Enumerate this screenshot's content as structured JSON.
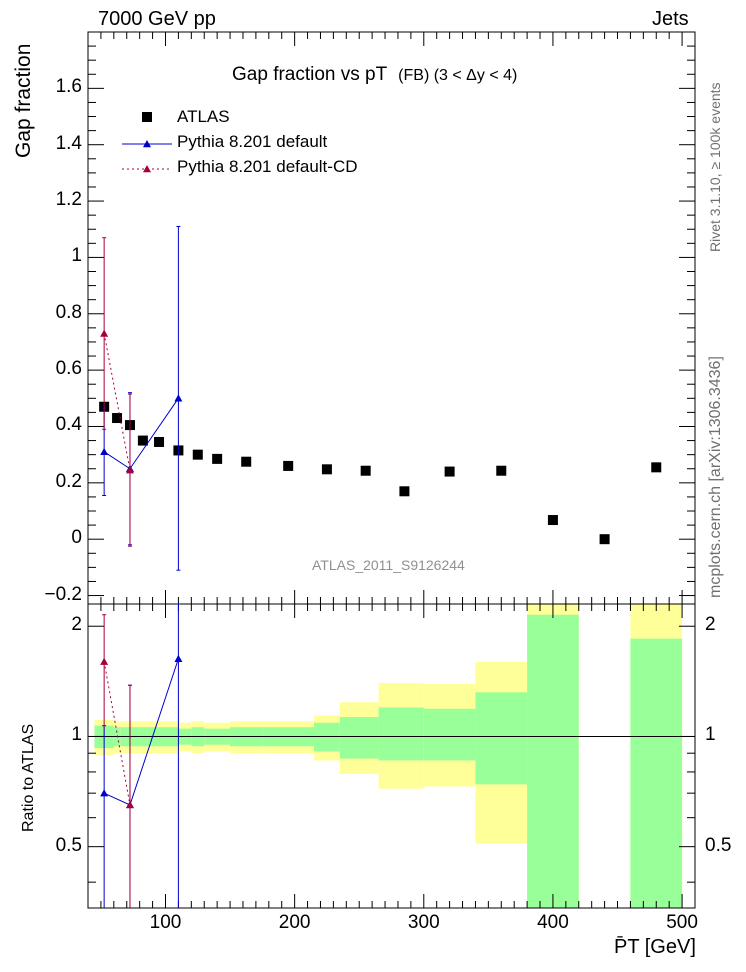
{
  "header": {
    "left": "7000 GeV pp",
    "right": "Jets"
  },
  "side_text": {
    "rivet": "Rivet 3.1.10, ≥ 100k events",
    "mcplots": "mcplots.cern.ch [arXiv:1306.3436]"
  },
  "chart_data": {
    "type": "scatter",
    "title": "Gap fraction vs pT",
    "subtitle": "(FB) (3 < Δy < 4)",
    "ylabel": "Gap fraction",
    "ratio_ylabel": "Ratio to ATLAS",
    "xlabel": "P̄T [GeV]",
    "watermark": "ATLAS_2011_S9126244",
    "xlim": [
      40,
      510
    ],
    "ylim": [
      -0.23,
      1.8
    ],
    "ratio_ylim": [
      0.34,
      2.3
    ],
    "x_ticks": [
      100,
      200,
      300,
      400,
      500
    ],
    "y_ticks": [
      -0.2,
      0,
      0.2,
      0.4,
      0.6,
      0.8,
      1,
      1.2,
      1.4,
      1.6
    ],
    "y_tick_labels": [
      "−0.2",
      "0",
      "0.2",
      "0.4",
      "0.6",
      "0.8",
      "1",
      "1.2",
      "1.4",
      "1.6"
    ],
    "ratio_ticks": [
      0.5,
      1,
      2
    ],
    "legend": {
      "placement": "top-left",
      "entries": [
        "ATLAS",
        "Pythia 8.201 default",
        "Pythia 8.201 default-CD"
      ]
    },
    "series": [
      {
        "name": "ATLAS",
        "color": "#000000",
        "marker": "square",
        "x": [
          52.5,
          62.5,
          72.5,
          82.5,
          95,
          110,
          125,
          140,
          162.5,
          195,
          225,
          255,
          285,
          320,
          360,
          400,
          440,
          480
        ],
        "y": [
          0.47,
          0.43,
          0.405,
          0.35,
          0.345,
          0.315,
          0.3,
          0.285,
          0.275,
          0.26,
          0.248,
          0.243,
          0.17,
          0.24,
          0.243,
          0.068,
          0.0,
          0.255
        ]
      },
      {
        "name": "Pythia 8.201 default",
        "color": "#0000cc",
        "marker": "triangle",
        "line": "solid",
        "x": [
          52.5,
          72.5,
          110
        ],
        "y": [
          0.31,
          0.25,
          0.5
        ],
        "err_low": [
          0.155,
          0.27,
          0.61
        ],
        "err_high": [
          0.155,
          0.27,
          0.61
        ],
        "ratio": [
          0.7,
          0.65,
          1.63
        ],
        "ratio_err": [
          0.37,
          0.73,
          2.0
        ]
      },
      {
        "name": "Pythia 8.201 default-CD",
        "color": "#a8003f",
        "marker": "triangle",
        "line": "dotted",
        "x": [
          52.5,
          72.5
        ],
        "y": [
          0.73,
          0.245
        ],
        "err_low": [
          0.34,
          0.27
        ],
        "err_high": [
          0.34,
          0.27
        ],
        "ratio": [
          1.6,
          0.65
        ],
        "ratio_err": [
          0.55,
          0.73
        ]
      }
    ],
    "ratio_bands": {
      "edges": [
        45,
        60,
        65,
        80,
        85,
        100,
        110,
        120,
        130,
        150,
        175,
        215,
        235,
        265,
        300,
        340,
        380,
        420,
        460,
        500
      ],
      "stat_low": [
        0.93,
        0.94,
        0.94,
        0.94,
        0.94,
        0.94,
        0.95,
        0.94,
        0.95,
        0.94,
        0.94,
        0.91,
        0.87,
        0.86,
        0.86,
        0.74,
        0.0,
        null,
        0.0
      ],
      "stat_high": [
        1.07,
        1.06,
        1.06,
        1.06,
        1.06,
        1.06,
        1.05,
        1.06,
        1.05,
        1.06,
        1.06,
        1.09,
        1.13,
        1.2,
        1.19,
        1.32,
        2.15,
        null,
        1.85
      ],
      "tot_low": [
        0.89,
        0.9,
        0.9,
        0.9,
        0.9,
        0.9,
        0.91,
        0.9,
        0.91,
        0.9,
        0.9,
        0.86,
        0.79,
        0.72,
        0.73,
        0.51,
        0.0,
        null,
        0.0
      ],
      "tot_high": [
        1.11,
        1.1,
        1.1,
        1.1,
        1.1,
        1.1,
        1.09,
        1.1,
        1.09,
        1.1,
        1.1,
        1.14,
        1.24,
        1.4,
        1.39,
        1.6,
        3.0,
        null,
        3.0
      ],
      "stat_color": "#99ff99",
      "total_color": "#ffff99"
    }
  }
}
